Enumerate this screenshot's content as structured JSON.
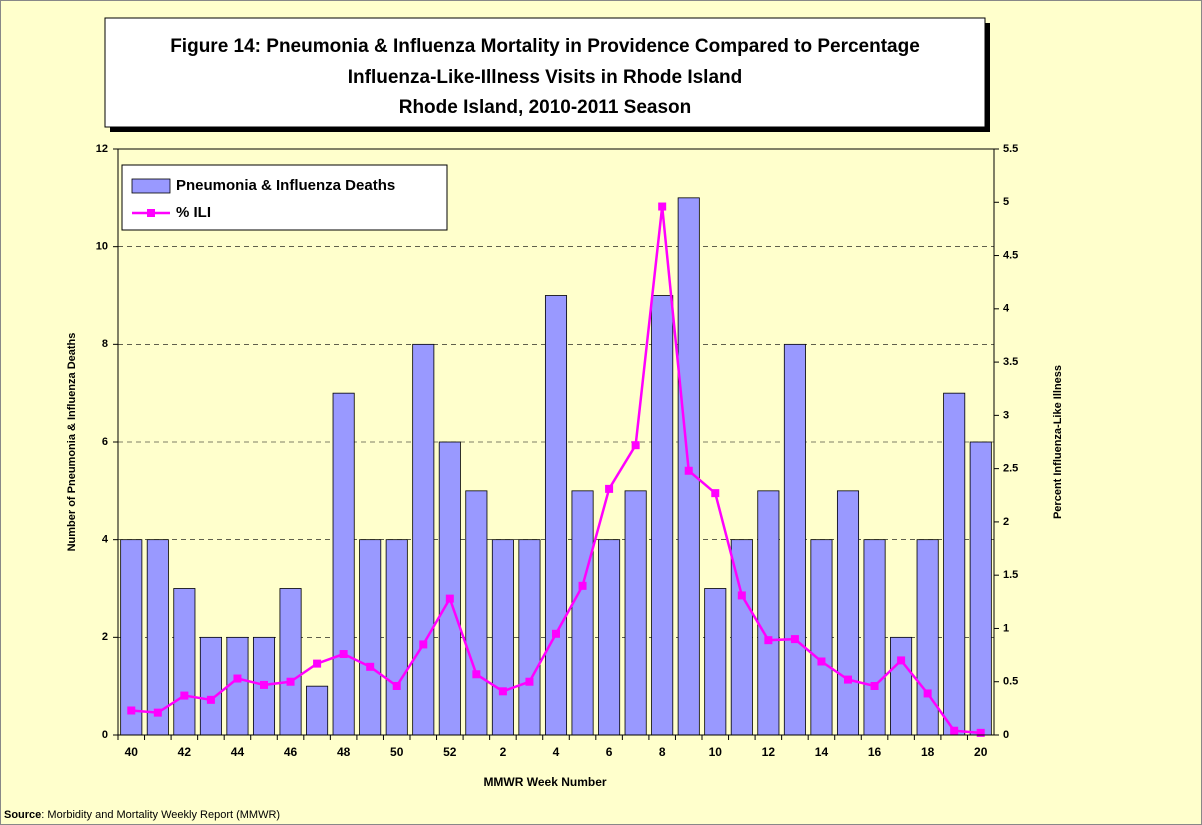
{
  "chart_data": {
    "type": "bar_line",
    "title": [
      "Figure 14: Pneumonia & Influenza Mortality in Providence Compared to Percentage",
      "Influenza-Like-Illness Visits in Rhode Island",
      "Rhode Island, 2010-2011 Season"
    ],
    "x_label": "MMWR Week Number",
    "y_label": "Number of Pneumonia & Influenza Deaths",
    "y2_label": "Percent Influenza-Like Illness",
    "categories": [
      "40",
      null,
      "42",
      null,
      "44",
      null,
      "46",
      null,
      "48",
      null,
      "50",
      null,
      "52",
      null,
      "2",
      null,
      "4",
      null,
      "6",
      null,
      "8",
      null,
      "10",
      null,
      "12",
      null,
      "14",
      null,
      "16",
      null,
      "18",
      null,
      "20"
    ],
    "series": [
      {
        "name": "Pneumonia & Influenza Deaths",
        "color": "#9999ff",
        "type": "bar",
        "values": [
          4,
          4,
          3,
          2,
          2,
          2,
          3,
          1,
          7,
          4,
          4,
          8,
          6,
          5,
          4,
          4,
          9,
          5,
          4,
          5,
          9,
          11,
          3,
          4,
          5,
          8,
          4,
          5,
          4,
          2,
          4,
          7,
          6
        ]
      },
      {
        "name": "% ILI",
        "color": "#ff00ff",
        "type": "line",
        "axis": "y2",
        "values": [
          0.23,
          0.21,
          0.37,
          0.33,
          0.53,
          0.47,
          0.5,
          0.67,
          0.76,
          0.64,
          0.46,
          0.85,
          1.28,
          0.57,
          0.41,
          0.5,
          0.95,
          1.4,
          2.31,
          2.72,
          4.96,
          2.48,
          2.27,
          1.31,
          0.89,
          0.9,
          0.69,
          0.52,
          0.46,
          0.7,
          0.39,
          0.04,
          0.02
        ]
      }
    ],
    "ylim": [
      0,
      12
    ],
    "yticks": [
      0,
      2,
      4,
      6,
      8,
      10,
      12
    ],
    "y2lim": [
      0,
      5.5
    ],
    "y2ticks": [
      0,
      0.5,
      1,
      1.5,
      2,
      2.5,
      3,
      3.5,
      4,
      4.5,
      5,
      5.5
    ],
    "grid": true,
    "legend": "upper left"
  },
  "source_label": "Source",
  "source_text": ": Morbidity and Mortality Weekly Report (MMWR)"
}
